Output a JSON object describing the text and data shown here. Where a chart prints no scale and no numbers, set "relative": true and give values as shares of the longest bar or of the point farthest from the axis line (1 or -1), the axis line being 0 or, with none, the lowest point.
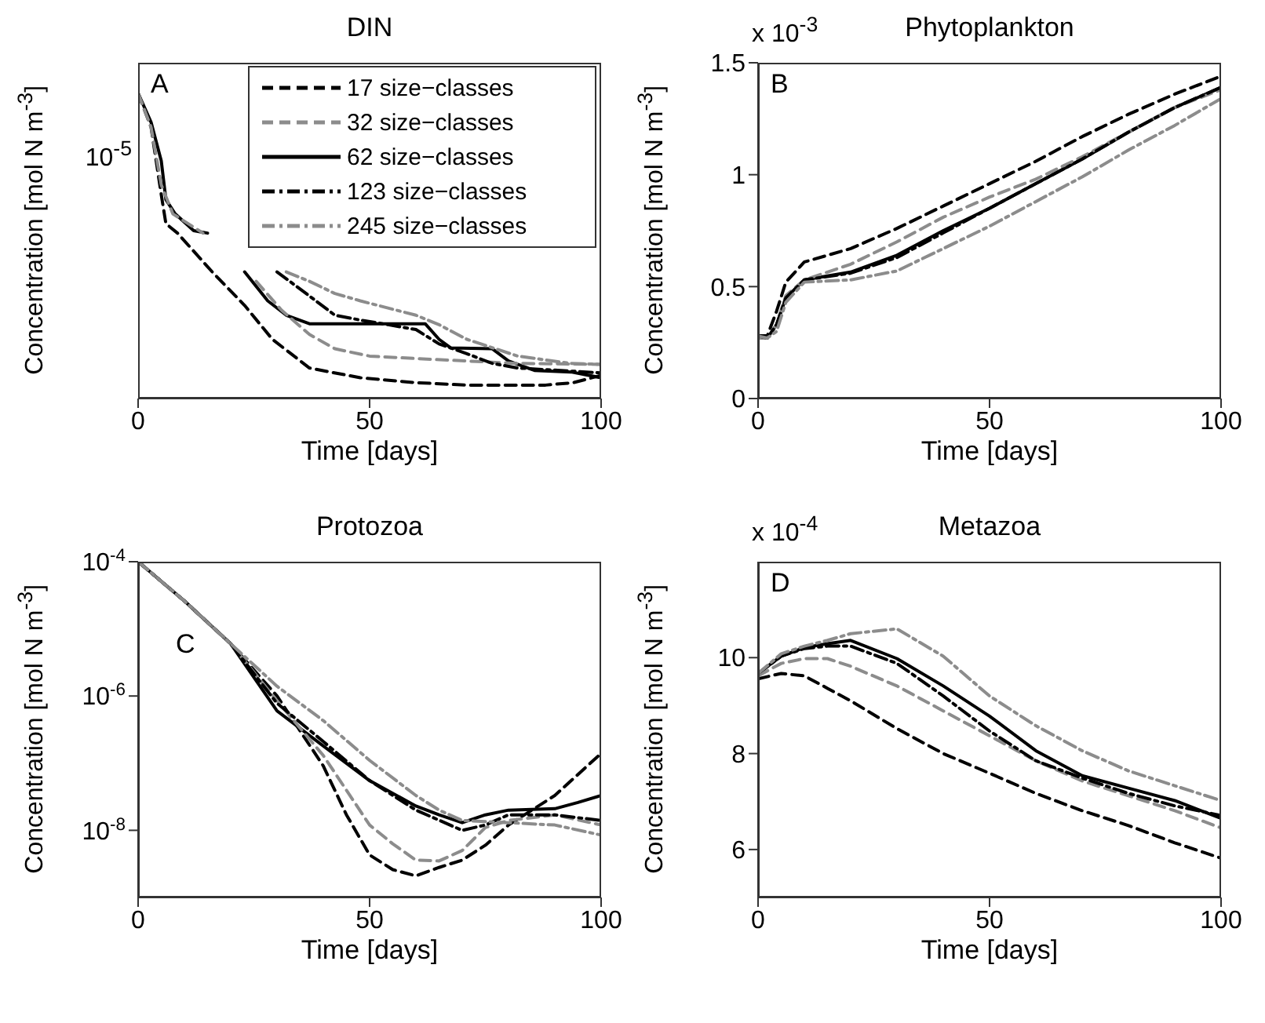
{
  "chart_data": [
    {
      "type": "line",
      "title": "DIN",
      "xlabel": "Time [days]",
      "ylabel": "Concentration [mol N m$^{-3}$]",
      "relative": true,
      "xlim": [
        0,
        100
      ],
      "xticks": [
        0,
        50,
        100
      ],
      "legend": "top right",
      "annotations": [
        "A",
        "10$^{-5}$"
      ],
      "series": [
        {
          "name": "17 size−classes",
          "color": "#000000",
          "line_style": "dashed",
          "x": [
            0,
            2.8,
            5,
            6,
            8.5,
            16,
            23,
            29,
            37,
            48,
            60,
            71,
            88,
            94,
            100
          ],
          "values": [
            1,
            0.889,
            0.668,
            0.573,
            0.542,
            0.415,
            0.305,
            0.194,
            0.1,
            0.068,
            0.052,
            0.044,
            0.044,
            0.052,
            0.076
          ]
        },
        {
          "name": "32 size−classes",
          "color": "#8c8c8c",
          "line_style": "dashed",
          "x": [
            0,
            2.8,
            5,
            7.5,
            14,
            20,
            25.5,
            31,
            37,
            42.5,
            50,
            60,
            71,
            82,
            100
          ],
          "values": [
            1,
            0.889,
            0.7,
            0.605,
            0.542,
            null,
            0.384,
            0.289,
            0.21,
            0.163,
            0.139,
            0.131,
            0.123,
            0.115,
            0.112
          ]
        },
        {
          "name": "62 size−classes",
          "color": "#000000",
          "line_style": "solid",
          "x": [
            0,
            2.8,
            5,
            6,
            8,
            12,
            15,
            20,
            23,
            28,
            32,
            37,
            48,
            62,
            65,
            67.5,
            76.5,
            80,
            85.6,
            93.5,
            100
          ],
          "values": [
            1,
            0.905,
            0.779,
            0.652,
            0.605,
            0.55,
            0.542,
            null,
            0.415,
            0.32,
            0.273,
            0.245,
            0.245,
            0.245,
            0.194,
            0.166,
            0.163,
            0.123,
            0.092,
            0.087,
            0.068
          ]
        },
        {
          "name": "123 size−classes",
          "color": "#000000",
          "line_style": "dashdot",
          "x": [
            30,
            37,
            42.5,
            48,
            54,
            60,
            65,
            71,
            76.5,
            82,
            100
          ],
          "values": [
            0.415,
            0.336,
            0.273,
            0.257,
            0.242,
            0.226,
            0.179,
            0.147,
            0.115,
            0.1,
            0.084
          ]
        },
        {
          "name": "245 size−classes",
          "color": "#8c8c8c",
          "line_style": "dashdot",
          "x": [
            32,
            37,
            42.5,
            48,
            60,
            65,
            71,
            82,
            93.5,
            100
          ],
          "values": [
            0.415,
            0.384,
            0.344,
            0.32,
            0.273,
            0.242,
            0.194,
            0.139,
            0.115,
            0.112
          ]
        }
      ]
    },
    {
      "type": "line",
      "title": "Phytoplankton",
      "xlabel": "Time [days]",
      "ylabel": "Concentration [mol N m$^{-3}$]",
      "xlim": [
        0,
        100
      ],
      "xticks": [
        0,
        50,
        100
      ],
      "ylim": [
        0,
        1.5
      ],
      "yticks": [
        0,
        0.5,
        1,
        1.5
      ],
      "annotations": [
        "B",
        "x 10$^{-3}$"
      ],
      "series": [
        {
          "color": "#000000",
          "line_style": "dashed",
          "x": [
            0,
            2,
            4,
            6,
            10,
            20,
            30,
            40,
            50,
            60,
            70,
            80,
            90,
            100
          ],
          "values": [
            0.28,
            0.28,
            0.39,
            0.52,
            0.61,
            0.67,
            0.76,
            0.86,
            0.96,
            1.06,
            1.17,
            1.27,
            1.36,
            1.44
          ]
        },
        {
          "color": "#8c8c8c",
          "line_style": "dashed",
          "x": [
            0,
            2,
            4,
            6,
            10,
            20,
            30,
            40,
            50,
            60,
            70,
            80,
            90,
            100
          ],
          "values": [
            0.27,
            0.27,
            0.33,
            0.46,
            0.53,
            0.6,
            0.7,
            0.81,
            0.9,
            0.98,
            1.08,
            1.19,
            1.3,
            1.38
          ]
        },
        {
          "color": "#000000",
          "line_style": "solid",
          "x": [
            0,
            2,
            4,
            6,
            10,
            20,
            30,
            40,
            50,
            60,
            70,
            80,
            90,
            100
          ],
          "values": [
            0.28,
            0.27,
            0.33,
            0.45,
            0.53,
            0.565,
            0.64,
            0.75,
            0.85,
            0.96,
            1.07,
            1.19,
            1.3,
            1.39
          ]
        },
        {
          "color": "#000000",
          "line_style": "dashdot",
          "x": [
            0,
            2,
            4,
            6,
            10,
            20,
            30,
            40,
            50,
            60,
            70,
            80,
            90,
            100
          ],
          "values": [
            0.28,
            0.27,
            0.33,
            0.45,
            0.53,
            0.56,
            0.63,
            0.74,
            0.85,
            0.96,
            1.07,
            1.19,
            1.3,
            1.39
          ]
        },
        {
          "color": "#8c8c8c",
          "line_style": "dashdot",
          "x": [
            0,
            2,
            4,
            6,
            10,
            20,
            30,
            40,
            50,
            60,
            70,
            80,
            90,
            100
          ],
          "values": [
            0.28,
            0.27,
            0.3,
            0.43,
            0.52,
            0.53,
            0.57,
            0.67,
            0.77,
            0.88,
            0.99,
            1.11,
            1.22,
            1.34
          ]
        }
      ]
    },
    {
      "type": "line",
      "title": "Protozoa",
      "xlabel": "Time [days]",
      "ylabel": "Concentration [mol N m$^{-3}$]",
      "log": "y",
      "xlim": [
        0,
        100
      ],
      "xticks": [
        0,
        50,
        100
      ],
      "ylim": [
        1e-09,
        0.0001
      ],
      "yticks": [
        {
          "value": 0.0001,
          "label": "10$^{-4}$"
        },
        {
          "value": 1e-06,
          "label": "10$^{-6}$"
        },
        {
          "value": 1e-08,
          "label": "10$^{-8}$"
        }
      ],
      "annotations": [
        "C"
      ],
      "series": [
        {
          "color": "#000000",
          "line_style": "dashed",
          "x": [
            0,
            10,
            20,
            30,
            40,
            45,
            50,
            55,
            60,
            65,
            70,
            75,
            80,
            90,
            100
          ],
          "values": [
            0.0001,
            2.6e-05,
            6e-06,
            1e-06,
            9.1e-08,
            1.7e-08,
            4.3e-09,
            2.6e-09,
            2.1e-09,
            2.8e-09,
            3.6e-09,
            6e-09,
            1.2e-08,
            3.3e-08,
            1.4e-07
          ]
        },
        {
          "color": "#8c8c8c",
          "line_style": "dashed",
          "x": [
            0,
            10,
            20,
            30,
            40,
            50,
            55,
            60,
            65,
            70,
            75,
            80,
            90,
            100
          ],
          "values": [
            0.0001,
            2.6e-05,
            6e-06,
            8.5e-07,
            1.3e-07,
            1.2e-08,
            6.3e-09,
            3.6e-09,
            3.5e-09,
            5e-09,
            1.1e-08,
            1.4e-08,
            1.7e-08,
            1.2e-08
          ]
        },
        {
          "color": "#000000",
          "line_style": "solid",
          "x": [
            0,
            10,
            20,
            30,
            40,
            50,
            60,
            65,
            70,
            75,
            80,
            90,
            95,
            100
          ],
          "values": [
            0.0001,
            2.6e-05,
            6e-06,
            6e-07,
            1.8e-07,
            5.5e-08,
            2.3e-08,
            1.7e-08,
            1.3e-08,
            1.7e-08,
            2e-08,
            2.1e-08,
            2.6e-08,
            3.3e-08
          ]
        },
        {
          "color": "#000000",
          "line_style": "dashdot",
          "x": [
            0,
            10,
            20,
            30,
            40,
            50,
            60,
            70,
            75,
            80,
            90,
            100
          ],
          "values": [
            0.0001,
            2.6e-05,
            6e-06,
            7.8e-07,
            2.1e-07,
            5.5e-08,
            2e-08,
            1e-08,
            1.2e-08,
            1.7e-08,
            1.7e-08,
            1.4e-08
          ]
        },
        {
          "color": "#8c8c8c",
          "line_style": "dashdot",
          "x": [
            0,
            10,
            20,
            30,
            40,
            50,
            60,
            65,
            70,
            80,
            90,
            100
          ],
          "values": [
            0.0001,
            2.6e-05,
            6e-06,
            1.4e-06,
            4.3e-07,
            1.1e-07,
            3.3e-08,
            2e-08,
            1.4e-08,
            1.3e-08,
            1.2e-08,
            8.5e-09
          ]
        }
      ]
    },
    {
      "type": "line",
      "title": "Metazoa",
      "xlabel": "Time [days]",
      "ylabel": "Concentration [mol N m$^{-3}$]",
      "xlim": [
        0,
        100
      ],
      "xticks": [
        0,
        50,
        100
      ],
      "ylim": [
        5,
        12
      ],
      "yticks": [
        6,
        8,
        10
      ],
      "annotations": [
        "D",
        "x 10$^{-4}$"
      ],
      "series": [
        {
          "color": "#000000",
          "line_style": "dashed",
          "x": [
            0,
            5,
            10,
            15,
            20,
            30,
            40,
            50,
            60,
            70,
            80,
            90,
            100
          ],
          "values": [
            9.56,
            9.67,
            9.62,
            9.36,
            9.1,
            8.52,
            8.0,
            7.59,
            7.17,
            6.81,
            6.5,
            6.14,
            5.82
          ]
        },
        {
          "color": "#8c8c8c",
          "line_style": "dashed",
          "x": [
            0,
            5,
            10,
            15,
            20,
            30,
            40,
            50,
            60,
            70,
            80,
            90,
            100
          ],
          "values": [
            9.62,
            9.88,
            9.98,
            9.98,
            9.82,
            9.41,
            8.89,
            8.37,
            7.85,
            7.43,
            7.12,
            6.81,
            6.45
          ]
        },
        {
          "color": "#000000",
          "line_style": "solid",
          "x": [
            0,
            5,
            10,
            15,
            20,
            30,
            40,
            50,
            60,
            70,
            80,
            90,
            100
          ],
          "values": [
            9.67,
            10.03,
            10.21,
            10.29,
            10.36,
            9.98,
            9.41,
            8.78,
            8.06,
            7.54,
            7.28,
            7.02,
            6.65
          ]
        },
        {
          "color": "#000000",
          "line_style": "dashdot",
          "x": [
            0,
            5,
            10,
            15,
            20,
            30,
            40,
            50,
            60,
            70,
            80,
            90,
            100
          ],
          "values": [
            9.67,
            10.03,
            10.19,
            10.24,
            10.24,
            9.88,
            9.2,
            8.47,
            7.85,
            7.49,
            7.17,
            6.91,
            6.71
          ]
        },
        {
          "color": "#8c8c8c",
          "line_style": "dashdot",
          "x": [
            0,
            5,
            10,
            15,
            20,
            30,
            40,
            50,
            60,
            70,
            80,
            90,
            100
          ],
          "values": [
            9.67,
            10.08,
            10.24,
            10.36,
            10.5,
            10.6,
            10.03,
            9.2,
            8.58,
            8.06,
            7.64,
            7.33,
            7.02
          ]
        }
      ]
    }
  ]
}
